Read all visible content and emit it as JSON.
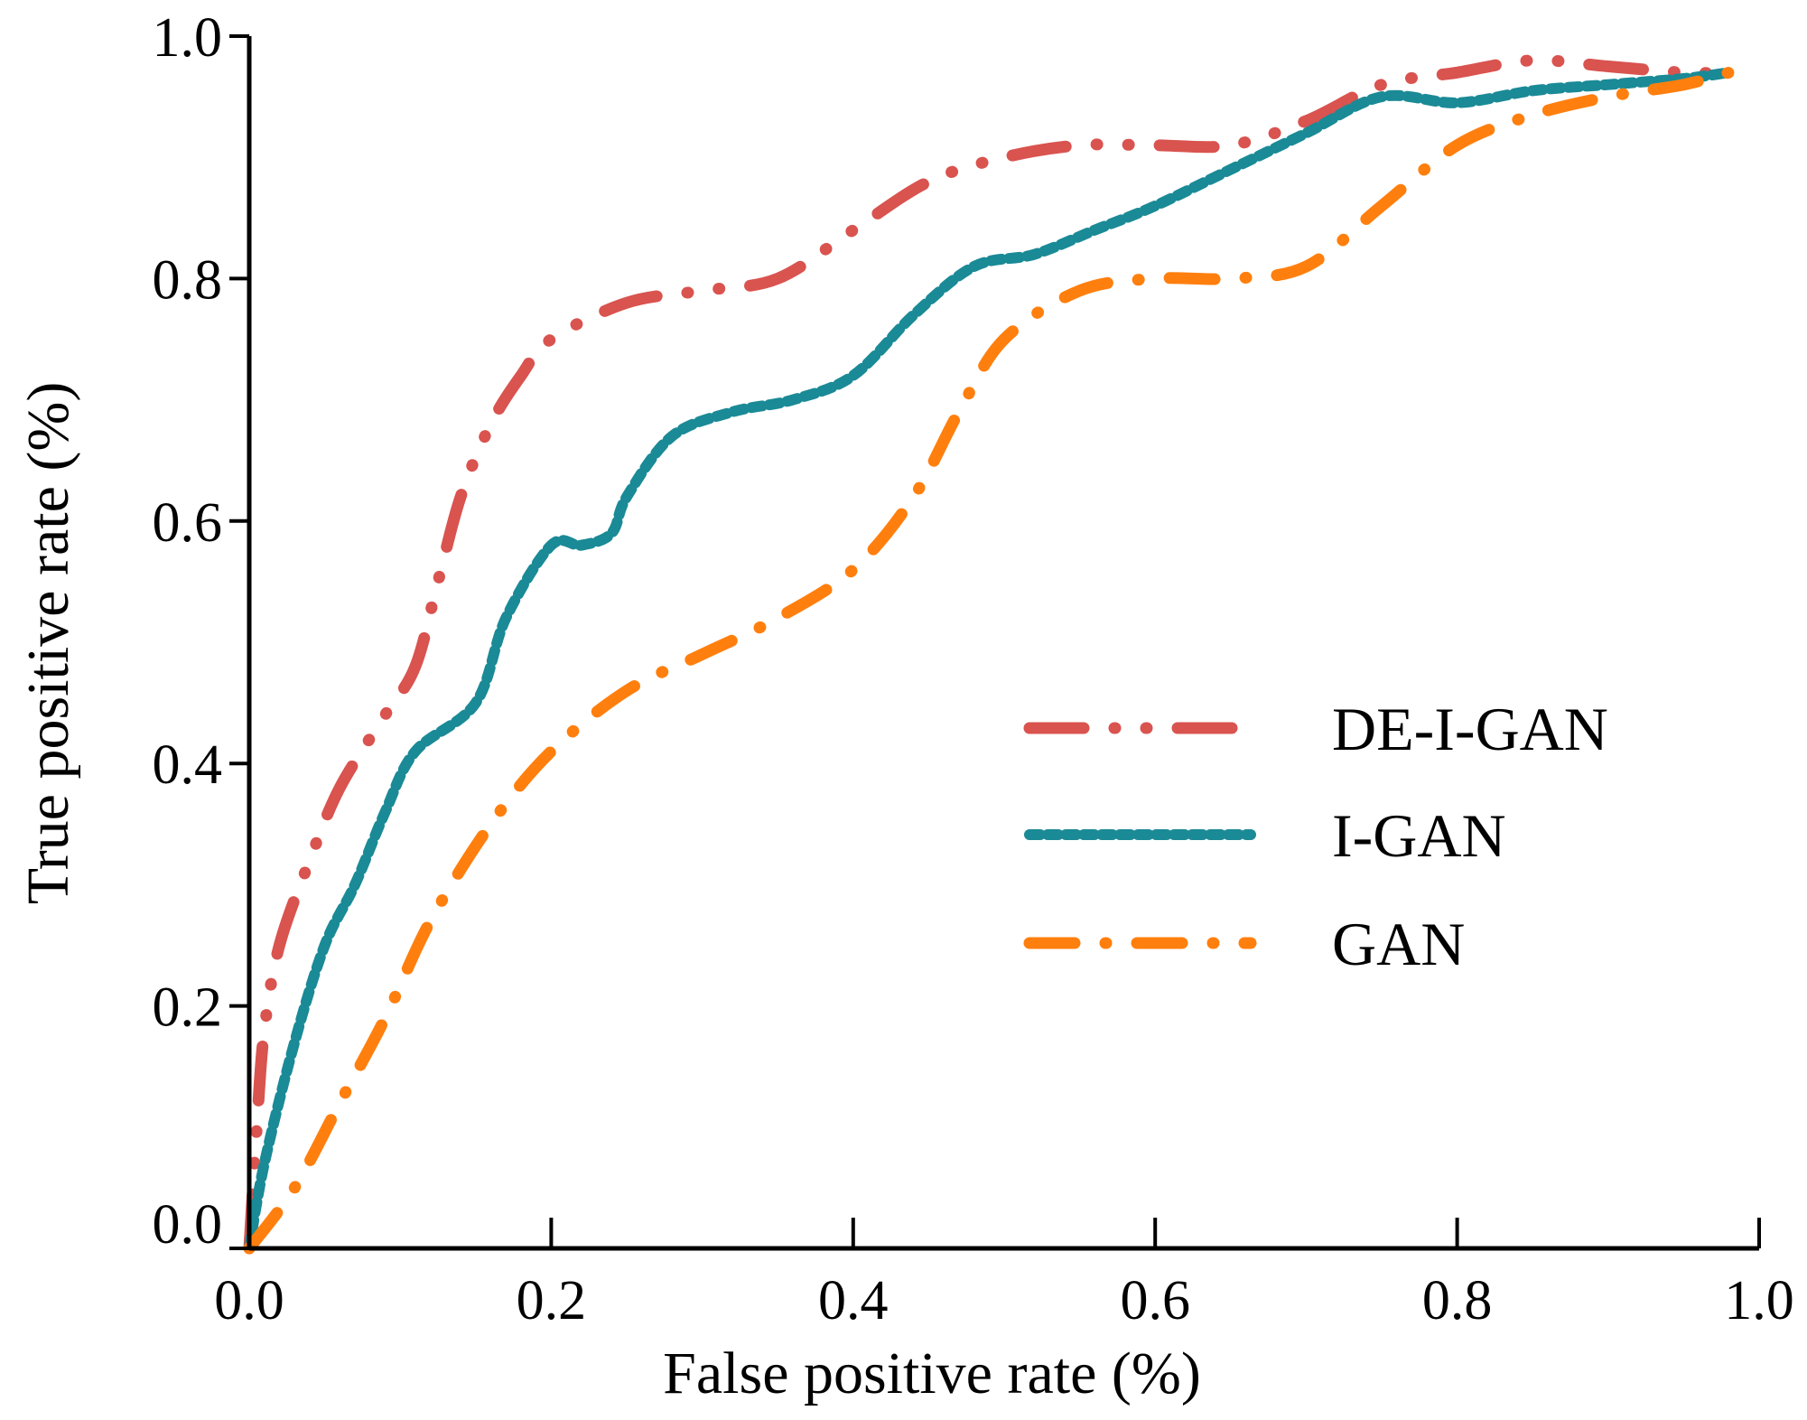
{
  "chart_data": {
    "type": "line",
    "title": "",
    "xlabel": "False positive rate (%)",
    "ylabel": "True positive rate (%)",
    "xlim": [
      0,
      1
    ],
    "ylim": [
      0,
      1
    ],
    "xticks": [
      "0.0",
      "0.2",
      "0.4",
      "0.6",
      "0.8",
      "1.0"
    ],
    "yticks": [
      "0.0",
      "0.2",
      "0.4",
      "0.6",
      "0.8",
      "1.0"
    ],
    "grid": false,
    "legend_position": "center-right",
    "series": [
      {
        "name": "DE-I-GAN",
        "color": "#d9534f",
        "dash": "long-dot-dot",
        "points": [
          [
            0,
            0
          ],
          [
            0.005,
            0.1
          ],
          [
            0.01,
            0.18
          ],
          [
            0.02,
            0.25
          ],
          [
            0.04,
            0.32
          ],
          [
            0.06,
            0.38
          ],
          [
            0.09,
            0.44
          ],
          [
            0.11,
            0.48
          ],
          [
            0.125,
            0.55
          ],
          [
            0.14,
            0.62
          ],
          [
            0.16,
            0.68
          ],
          [
            0.18,
            0.72
          ],
          [
            0.2,
            0.75
          ],
          [
            0.25,
            0.78
          ],
          [
            0.3,
            0.79
          ],
          [
            0.35,
            0.8
          ],
          [
            0.4,
            0.84
          ],
          [
            0.45,
            0.88
          ],
          [
            0.5,
            0.9
          ],
          [
            0.55,
            0.91
          ],
          [
            0.6,
            0.91
          ],
          [
            0.65,
            0.91
          ],
          [
            0.7,
            0.93
          ],
          [
            0.75,
            0.96
          ],
          [
            0.8,
            0.97
          ],
          [
            0.85,
            0.98
          ],
          [
            0.9,
            0.975
          ],
          [
            0.95,
            0.97
          ],
          [
            0.98,
            0.97
          ]
        ]
      },
      {
        "name": "I-GAN",
        "color": "#1a8a96",
        "dash": "short-dash",
        "points": [
          [
            0,
            0
          ],
          [
            0.01,
            0.07
          ],
          [
            0.03,
            0.17
          ],
          [
            0.05,
            0.25
          ],
          [
            0.07,
            0.3
          ],
          [
            0.09,
            0.36
          ],
          [
            0.11,
            0.41
          ],
          [
            0.15,
            0.45
          ],
          [
            0.17,
            0.52
          ],
          [
            0.2,
            0.58
          ],
          [
            0.22,
            0.58
          ],
          [
            0.24,
            0.59
          ],
          [
            0.25,
            0.62
          ],
          [
            0.28,
            0.67
          ],
          [
            0.32,
            0.69
          ],
          [
            0.36,
            0.7
          ],
          [
            0.4,
            0.72
          ],
          [
            0.44,
            0.77
          ],
          [
            0.48,
            0.81
          ],
          [
            0.52,
            0.82
          ],
          [
            0.56,
            0.84
          ],
          [
            0.6,
            0.86
          ],
          [
            0.65,
            0.89
          ],
          [
            0.7,
            0.92
          ],
          [
            0.75,
            0.95
          ],
          [
            0.8,
            0.945
          ],
          [
            0.85,
            0.955
          ],
          [
            0.9,
            0.96
          ],
          [
            0.95,
            0.965
          ],
          [
            0.98,
            0.97
          ]
        ]
      },
      {
        "name": "GAN",
        "color": "#ff7f0e",
        "dash": "long-dot",
        "points": [
          [
            0,
            0
          ],
          [
            0.03,
            0.05
          ],
          [
            0.06,
            0.12
          ],
          [
            0.09,
            0.19
          ],
          [
            0.12,
            0.27
          ],
          [
            0.16,
            0.35
          ],
          [
            0.2,
            0.41
          ],
          [
            0.25,
            0.46
          ],
          [
            0.3,
            0.49
          ],
          [
            0.35,
            0.52
          ],
          [
            0.4,
            0.56
          ],
          [
            0.44,
            0.62
          ],
          [
            0.47,
            0.69
          ],
          [
            0.5,
            0.75
          ],
          [
            0.55,
            0.79
          ],
          [
            0.6,
            0.8
          ],
          [
            0.65,
            0.8
          ],
          [
            0.7,
            0.81
          ],
          [
            0.75,
            0.86
          ],
          [
            0.8,
            0.91
          ],
          [
            0.85,
            0.935
          ],
          [
            0.9,
            0.95
          ],
          [
            0.95,
            0.96
          ],
          [
            0.98,
            0.97
          ]
        ]
      }
    ]
  }
}
